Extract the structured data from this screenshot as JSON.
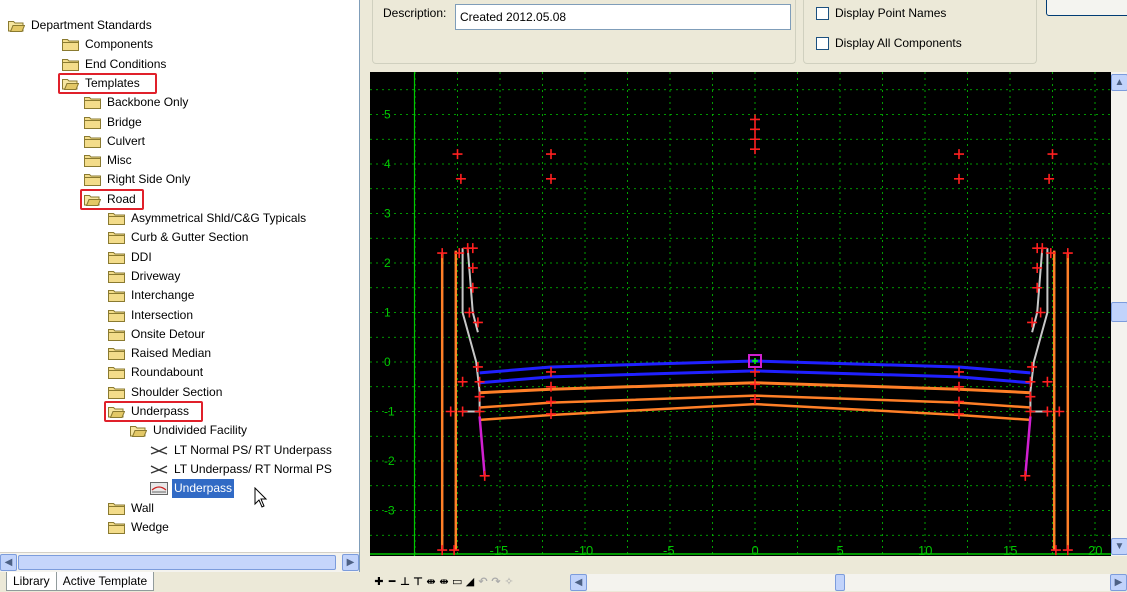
{
  "tree": {
    "items": [
      {
        "label": "Department Standards",
        "indent": 0,
        "open": true
      },
      {
        "label": "Components",
        "indent": 1,
        "open": false
      },
      {
        "label": "End Conditions",
        "indent": 1,
        "open": false
      },
      {
        "label": "Templates",
        "indent": 1,
        "open": true
      },
      {
        "label": "Backbone Only",
        "indent": 2,
        "open": false
      },
      {
        "label": "Bridge",
        "indent": 2,
        "open": false
      },
      {
        "label": "Culvert",
        "indent": 2,
        "open": false
      },
      {
        "label": "Misc",
        "indent": 2,
        "open": false
      },
      {
        "label": "Right Side Only",
        "indent": 2,
        "open": false
      },
      {
        "label": "Road",
        "indent": 2,
        "open": true
      },
      {
        "label": "Asymmetrical Shld/C&G Typicals",
        "indent": 3,
        "open": false
      },
      {
        "label": "Curb & Gutter Section",
        "indent": 3,
        "open": false
      },
      {
        "label": "DDI",
        "indent": 3,
        "open": false
      },
      {
        "label": "Driveway",
        "indent": 3,
        "open": false
      },
      {
        "label": "Interchange",
        "indent": 3,
        "open": false
      },
      {
        "label": "Intersection",
        "indent": 3,
        "open": false
      },
      {
        "label": "Onsite Detour",
        "indent": 3,
        "open": false
      },
      {
        "label": "Raised Median",
        "indent": 3,
        "open": false
      },
      {
        "label": "Roundabount",
        "indent": 3,
        "open": false
      },
      {
        "label": "Shoulder Section",
        "indent": 3,
        "open": false
      },
      {
        "label": "Underpass",
        "indent": 3,
        "open": true
      },
      {
        "label": "Undivided Facility",
        "indent": 4,
        "open": true
      },
      {
        "label": "LT Normal PS/ RT Underpass",
        "indent": 5,
        "type": "template"
      },
      {
        "label": "LT Underpass/ RT Normal PS",
        "indent": 5,
        "type": "template"
      },
      {
        "label": "Underpass",
        "indent": 5,
        "type": "template",
        "selected": true
      },
      {
        "label": "Wall",
        "indent": 3,
        "open": false
      },
      {
        "label": "Wedge",
        "indent": 3,
        "open": false
      }
    ]
  },
  "tabs": [
    "Library",
    "Active Template"
  ],
  "form": {
    "description_label": "Description:",
    "description_value": "Created 2012.05.08",
    "display_point_names": "Display Point Names",
    "display_all_components": "Display All Components"
  },
  "canvas": {
    "y_labels": [
      "5",
      "4",
      "3",
      "2",
      "1",
      "0",
      "-1",
      "-2",
      "-3"
    ],
    "x_labels": [
      "-15",
      "-10",
      "-5",
      "0",
      "5",
      "10",
      "15",
      "20"
    ],
    "colors": {
      "grid": "#00c800",
      "point": "#ff2020",
      "blue": "#2020ff",
      "orange": "#ff7f27",
      "white": "#c8c8c8",
      "magenta": "#d020d0"
    }
  },
  "toolbar": {
    "icons": [
      "plus-icon",
      "minus-icon",
      "add-point-icon",
      "add-point2-icon",
      "move-icon",
      "move2-icon",
      "window-icon",
      "component-icon",
      "undo-icon",
      "redo-icon",
      "dynamic-icon",
      "scroll-left-icon"
    ]
  }
}
